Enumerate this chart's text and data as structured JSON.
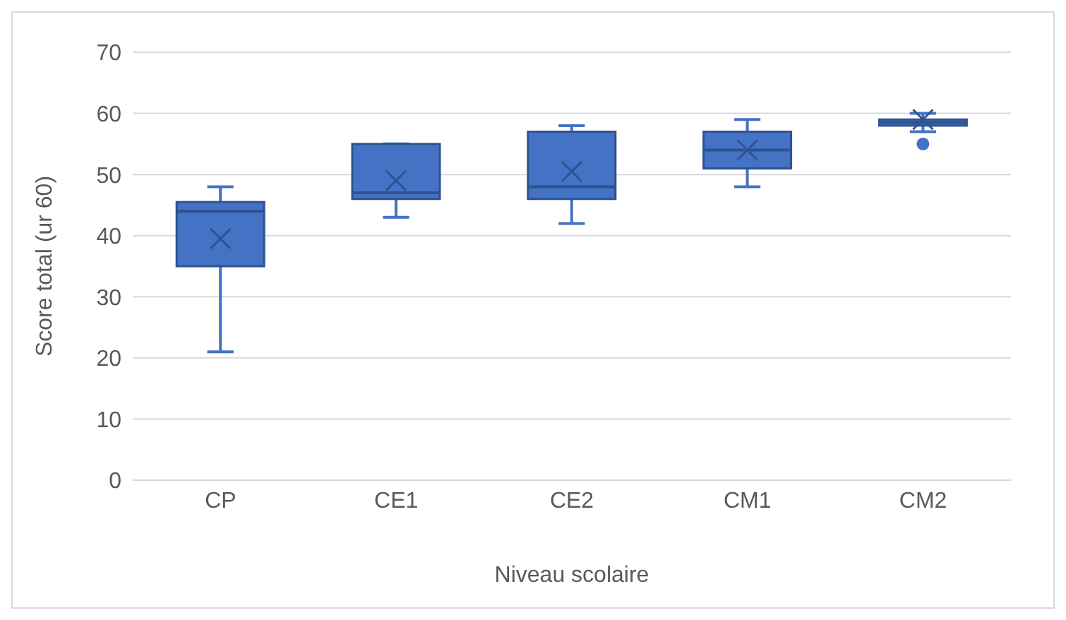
{
  "chart_data": {
    "type": "box",
    "xlabel": "Niveau scolaire",
    "ylabel": "Score total (ur 60)",
    "categories": [
      "CP",
      "CE1",
      "CE2",
      "CM1",
      "CM2"
    ],
    "color": "#4472c4",
    "boxes": [
      {
        "low": 21,
        "q1": 35,
        "median": 44,
        "q3": 45.5,
        "high": 48,
        "mean": 39.5
      },
      {
        "low": 43,
        "q1": 46,
        "median": 47,
        "q3": 55,
        "high": 55,
        "mean": 49
      },
      {
        "low": 42,
        "q1": 46,
        "median": 48,
        "q3": 57,
        "high": 58,
        "mean": 50.5
      },
      {
        "low": 48,
        "q1": 51,
        "median": 54,
        "q3": 57,
        "high": 59,
        "mean": 54
      },
      {
        "low": 57,
        "q1": 58,
        "median": 58.5,
        "q3": 59,
        "high": 60,
        "mean": 59,
        "outliers": [
          55
        ]
      }
    ],
    "ylim": [
      0,
      70
    ],
    "yticks": [
      0,
      10,
      20,
      30,
      40,
      50,
      60,
      70
    ],
    "grid": "y"
  }
}
